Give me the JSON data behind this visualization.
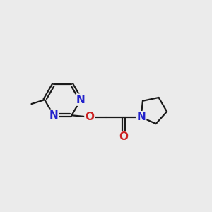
{
  "background_color": "#ebebeb",
  "bond_color": "#1a1a1a",
  "N_color": "#2222cc",
  "O_color": "#cc2222",
  "bond_width": 1.6,
  "font_size_N": 11,
  "font_size_O": 11,
  "font_size_methyl": 10,
  "figsize": [
    3.0,
    3.0
  ],
  "dpi": 100,
  "xlim": [
    -2.8,
    3.2
  ],
  "ylim": [
    -1.5,
    1.5
  ]
}
